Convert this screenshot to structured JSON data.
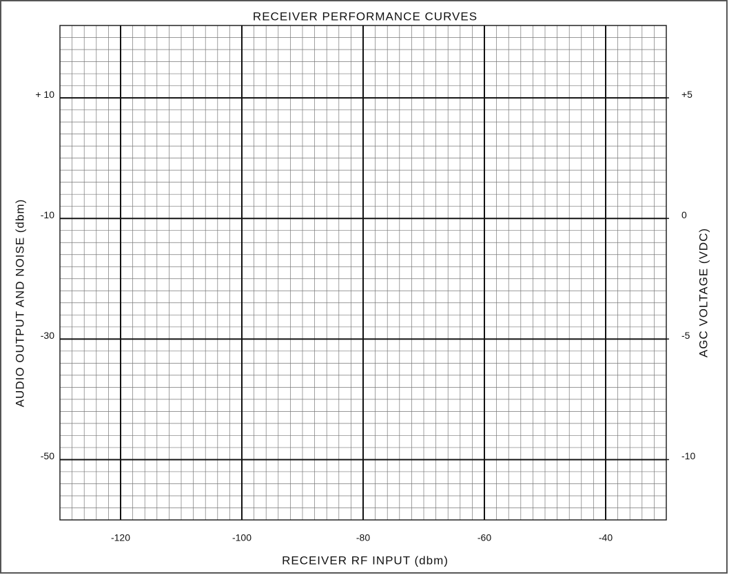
{
  "chart_data": {
    "type": "line",
    "title": "RECEIVER PERFORMANCE CURVES",
    "xlabel": "RECEIVER RF INPUT (dbm)",
    "ylabel": "AUDIO OUTPUT AND NOISE (dbm)",
    "y2label": "AGC VOLTAGE (VDC)",
    "xlim": [
      -130,
      -30
    ],
    "xticks": [
      -120,
      -100,
      -80,
      -60,
      -40
    ],
    "ylim": [
      -60,
      22
    ],
    "yticks": [
      -50,
      -30,
      -10,
      {
        "value": 10,
        "label": "+ 10"
      }
    ],
    "y2lim": [
      -12.5,
      8
    ],
    "y2ticks": [
      -10,
      -5,
      0,
      {
        "value": 5,
        "label": "+5"
      }
    ],
    "grid": true,
    "series": []
  }
}
